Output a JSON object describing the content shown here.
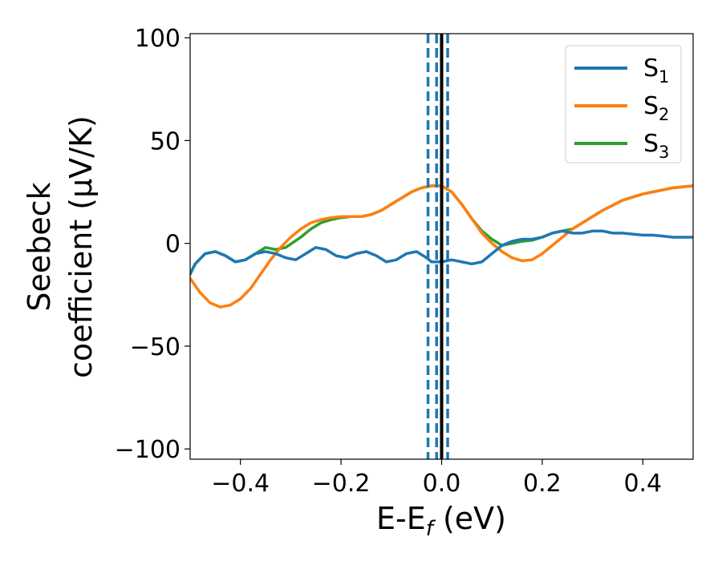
{
  "chart_data": {
    "type": "line",
    "xlabel": {
      "main": "E-E",
      "sub": "f",
      "tail": " (eV)"
    },
    "ylabel": {
      "line1": "Seebeck",
      "line2": "coefficient  (μV/K)"
    },
    "xlim": [
      -0.5,
      0.5
    ],
    "ylim": [
      -105,
      102
    ],
    "xticks": [
      {
        "value": -0.4,
        "label": "−0.4"
      },
      {
        "value": -0.2,
        "label": "−0.2"
      },
      {
        "value": 0.0,
        "label": "0.0"
      },
      {
        "value": 0.2,
        "label": "0.2"
      },
      {
        "value": 0.4,
        "label": "0.4"
      }
    ],
    "yticks": [
      {
        "value": -100,
        "label": "−100"
      },
      {
        "value": -50,
        "label": "−50"
      },
      {
        "value": 0,
        "label": "0"
      },
      {
        "value": 50,
        "label": "50"
      },
      {
        "value": 100,
        "label": "100"
      }
    ],
    "legend_position": "top-right",
    "series": [
      {
        "name": "S",
        "sub": "1",
        "color": "#1f77b4",
        "points": [
          [
            -0.5,
            -15
          ],
          [
            -0.49,
            -10
          ],
          [
            -0.47,
            -5
          ],
          [
            -0.45,
            -4
          ],
          [
            -0.43,
            -6
          ],
          [
            -0.41,
            -9
          ],
          [
            -0.39,
            -8
          ],
          [
            -0.37,
            -5
          ],
          [
            -0.35,
            -4
          ],
          [
            -0.33,
            -5
          ],
          [
            -0.31,
            -7
          ],
          [
            -0.29,
            -8
          ],
          [
            -0.27,
            -5
          ],
          [
            -0.25,
            -2
          ],
          [
            -0.23,
            -3
          ],
          [
            -0.21,
            -6
          ],
          [
            -0.19,
            -7
          ],
          [
            -0.17,
            -5
          ],
          [
            -0.15,
            -4
          ],
          [
            -0.13,
            -6
          ],
          [
            -0.11,
            -9
          ],
          [
            -0.09,
            -8
          ],
          [
            -0.07,
            -5
          ],
          [
            -0.05,
            -4
          ],
          [
            -0.03,
            -7
          ],
          [
            -0.02,
            -9
          ],
          [
            0.0,
            -9
          ],
          [
            0.02,
            -8
          ],
          [
            0.04,
            -9
          ],
          [
            0.06,
            -10
          ],
          [
            0.08,
            -9
          ],
          [
            0.1,
            -5
          ],
          [
            0.12,
            -1
          ],
          [
            0.14,
            1
          ],
          [
            0.16,
            2
          ],
          [
            0.18,
            2
          ],
          [
            0.2,
            3
          ],
          [
            0.22,
            5
          ],
          [
            0.24,
            6
          ],
          [
            0.26,
            5
          ],
          [
            0.28,
            5
          ],
          [
            0.3,
            6
          ],
          [
            0.32,
            6
          ],
          [
            0.34,
            5
          ],
          [
            0.36,
            5
          ],
          [
            0.38,
            4.5
          ],
          [
            0.4,
            4
          ],
          [
            0.42,
            4
          ],
          [
            0.44,
            3.5
          ],
          [
            0.46,
            3
          ],
          [
            0.48,
            3
          ],
          [
            0.5,
            3
          ]
        ]
      },
      {
        "name": "S",
        "sub": "2",
        "color": "#ff7f0e",
        "points": [
          [
            -0.5,
            -17
          ],
          [
            -0.48,
            -24
          ],
          [
            -0.46,
            -29
          ],
          [
            -0.44,
            -31
          ],
          [
            -0.42,
            -30
          ],
          [
            -0.4,
            -27
          ],
          [
            -0.38,
            -22
          ],
          [
            -0.36,
            -15
          ],
          [
            -0.34,
            -8
          ],
          [
            -0.32,
            -2
          ],
          [
            -0.3,
            3
          ],
          [
            -0.28,
            7
          ],
          [
            -0.26,
            10
          ],
          [
            -0.24,
            11.5
          ],
          [
            -0.22,
            12.5
          ],
          [
            -0.2,
            13
          ],
          [
            -0.18,
            13
          ],
          [
            -0.16,
            13
          ],
          [
            -0.14,
            14
          ],
          [
            -0.12,
            16
          ],
          [
            -0.1,
            19
          ],
          [
            -0.08,
            22
          ],
          [
            -0.06,
            25
          ],
          [
            -0.04,
            27
          ],
          [
            -0.02,
            28
          ],
          [
            0.0,
            28
          ],
          [
            0.02,
            25
          ],
          [
            0.04,
            19
          ],
          [
            0.06,
            12
          ],
          [
            0.08,
            5
          ],
          [
            0.1,
            0
          ],
          [
            0.12,
            -4
          ],
          [
            0.14,
            -7
          ],
          [
            0.16,
            -8.5
          ],
          [
            0.18,
            -8
          ],
          [
            0.2,
            -5
          ],
          [
            0.22,
            -1
          ],
          [
            0.24,
            3
          ],
          [
            0.26,
            7
          ],
          [
            0.28,
            10
          ],
          [
            0.3,
            13
          ],
          [
            0.32,
            16
          ],
          [
            0.34,
            18.5
          ],
          [
            0.36,
            21
          ],
          [
            0.38,
            22.5
          ],
          [
            0.4,
            24
          ],
          [
            0.42,
            25
          ],
          [
            0.44,
            26
          ],
          [
            0.46,
            27
          ],
          [
            0.48,
            27.5
          ],
          [
            0.5,
            28
          ]
        ]
      },
      {
        "name": "S",
        "sub": "3",
        "color": "#2ca02c",
        "points": [
          [
            -0.5,
            -15
          ],
          [
            -0.49,
            -10
          ],
          [
            -0.47,
            -5
          ],
          [
            -0.45,
            -4
          ],
          [
            -0.43,
            -6
          ],
          [
            -0.41,
            -9
          ],
          [
            -0.39,
            -8
          ],
          [
            -0.37,
            -5
          ],
          [
            -0.35,
            -2
          ],
          [
            -0.33,
            -3
          ],
          [
            -0.31,
            -2
          ],
          [
            -0.28,
            3
          ],
          [
            -0.26,
            7
          ],
          [
            -0.24,
            10
          ],
          [
            -0.22,
            11.5
          ],
          [
            -0.2,
            12.5
          ],
          [
            -0.18,
            13
          ],
          [
            -0.16,
            13
          ],
          [
            -0.14,
            14
          ],
          [
            -0.12,
            16
          ],
          [
            -0.1,
            19
          ],
          [
            -0.08,
            22
          ],
          [
            -0.06,
            25
          ],
          [
            -0.04,
            27
          ],
          [
            -0.02,
            28
          ],
          [
            0.0,
            28
          ],
          [
            0.02,
            25
          ],
          [
            0.04,
            19
          ],
          [
            0.06,
            12
          ],
          [
            0.08,
            6
          ],
          [
            0.1,
            2
          ],
          [
            0.12,
            -1
          ],
          [
            0.14,
            0
          ],
          [
            0.16,
            1
          ],
          [
            0.18,
            1.5
          ],
          [
            0.2,
            3
          ],
          [
            0.22,
            5
          ],
          [
            0.24,
            6
          ],
          [
            0.26,
            7
          ],
          [
            0.28,
            10
          ],
          [
            0.3,
            13
          ],
          [
            0.32,
            16
          ],
          [
            0.34,
            18.5
          ],
          [
            0.36,
            21
          ],
          [
            0.38,
            22.5
          ],
          [
            0.4,
            24
          ],
          [
            0.42,
            25
          ],
          [
            0.44,
            26
          ],
          [
            0.46,
            27
          ],
          [
            0.48,
            27.5
          ],
          [
            0.5,
            28
          ]
        ]
      }
    ],
    "vlines": [
      {
        "x": -0.027,
        "style": "dashed",
        "color": "#1f77b4"
      },
      {
        "x": -0.01,
        "style": "dashed",
        "color": "#1f77b4"
      },
      {
        "x": 0.0,
        "style": "solid",
        "color": "#000000"
      },
      {
        "x": 0.012,
        "style": "dashed",
        "color": "#1f77b4"
      }
    ]
  }
}
